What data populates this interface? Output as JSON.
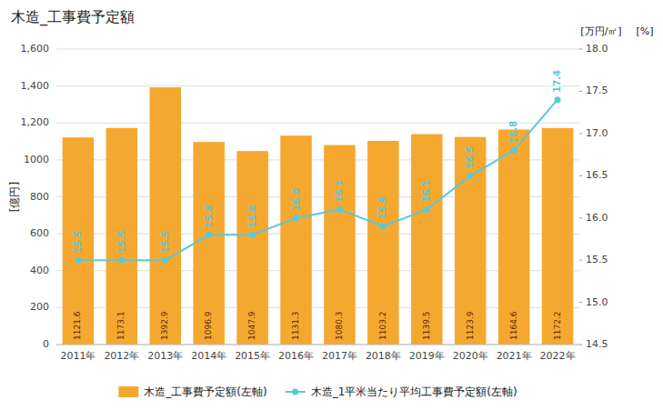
{
  "chart_data": {
    "type": "bar",
    "title": "木造_工事費予定額",
    "categories": [
      "2011年",
      "2012年",
      "2013年",
      "2014年",
      "2015年",
      "2016年",
      "2017年",
      "2018年",
      "2019年",
      "2020年",
      "2021年",
      "2022年"
    ],
    "series": [
      {
        "name": "木造_工事費予定額(左軸)",
        "type": "bar",
        "color": "#F5A830",
        "data_labels": true,
        "values": [
          1121.6,
          1173.1,
          1392.9,
          1096.9,
          1047.9,
          1131.3,
          1080.3,
          1103.2,
          1139.5,
          1123.9,
          1164.6,
          1172.2
        ]
      },
      {
        "name": "木造_1平米当たり平均工事費予定額(左軸)",
        "type": "line",
        "axis": "y2",
        "color": "#5BC8D8",
        "marker": "circle",
        "data_labels": true,
        "values": [
          15.5,
          15.5,
          15.5,
          15.8,
          15.8,
          16.0,
          16.1,
          15.9,
          16.1,
          16.5,
          16.8,
          17.4
        ],
        "value_labels": [
          "15.5",
          "15.5",
          "15.5",
          "15.8",
          "15.8",
          "16.0",
          "16.1",
          "15.9",
          "16.1",
          "16.5",
          "16.8",
          "17.4"
        ]
      }
    ],
    "ylabel": "[億円]",
    "y2label": "[万円/㎡]",
    "annotations": [
      "[%]"
    ],
    "ylim": [
      0,
      1600
    ],
    "yticks": [
      0,
      200,
      400,
      600,
      800,
      1000,
      {
        "value": 1200,
        "label": "1,200"
      },
      {
        "value": 1400,
        "label": "1,400"
      },
      {
        "value": 1600,
        "label": "1,600"
      }
    ],
    "y2lim": [
      14.5,
      18.0
    ],
    "y2ticks": [
      14.5,
      {
        "value": 15.0,
        "label": "15.0"
      },
      15.5,
      {
        "value": 16.0,
        "label": "16.0"
      },
      16.5,
      {
        "value": 17.0,
        "label": "17.0"
      },
      17.5,
      {
        "value": 18.0,
        "label": "18.0"
      }
    ],
    "grid": true,
    "legend": "bottom"
  }
}
